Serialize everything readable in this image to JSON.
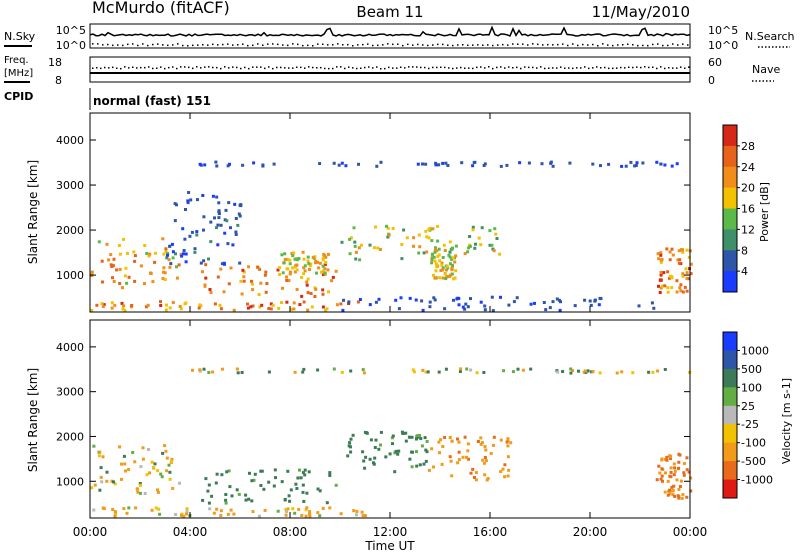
{
  "header": {
    "station": "McMurdo (fitACF)",
    "beam": "Beam 11",
    "date": "11/May/2010"
  },
  "noise_panel": {
    "left_label": "N.Sky",
    "left_ticks": [
      "10^5",
      "10^0"
    ],
    "right_ticks": [
      "10^5",
      "10^0"
    ],
    "right_label": "N.Search"
  },
  "freq_panel": {
    "left_label_1": "Freq.",
    "left_label_2": "[MHz]",
    "left_ticks": [
      "18",
      "8"
    ],
    "right_ticks": [
      "60",
      "0"
    ],
    "right_label": "Nave"
  },
  "cpid_panel": {
    "label": "CPID",
    "program": "normal (fast) 151"
  },
  "colors": {
    "power_scale": [
      "#1a3cff",
      "#2d55a8",
      "#3f8f6a",
      "#5bb94a",
      "#f2c200",
      "#f28c1a",
      "#e8631a",
      "#d62718"
    ],
    "velocity_scale": [
      "#1a3cff",
      "#2d55a8",
      "#3d7a58",
      "#62ae45",
      "#b9b9b9",
      "#f2c200",
      "#f29a1a",
      "#e86a1a",
      "#e01a12"
    ]
  },
  "chart_data": [
    {
      "type": "heatmap",
      "title": "Power",
      "xlabel": "Time UT",
      "ylabel": "Slant Range [km]",
      "x_ticks": [
        "00:00",
        "04:00",
        "08:00",
        "12:00",
        "16:00",
        "20:00",
        "00:00"
      ],
      "xlim": [
        0,
        24
      ],
      "y_ticks": [
        "1000",
        "2000",
        "3000",
        "4000"
      ],
      "ylim": [
        180,
        4600
      ],
      "colorbar_label": "Power [dB]",
      "colorbar_ticks": [
        "4",
        "8",
        "12",
        "16",
        "20",
        "24",
        "28"
      ],
      "colorbar_range": [
        0,
        32
      ],
      "echo_regions": [
        {
          "t0": 0.0,
          "t1": 3.6,
          "r0": 700,
          "r1": 1800,
          "v0": 14,
          "v1": 28
        },
        {
          "t0": 3.0,
          "t1": 6.0,
          "r0": 1200,
          "r1": 2900,
          "v0": 2,
          "v1": 9
        },
        {
          "t0": 4.4,
          "t1": 9.8,
          "r0": 500,
          "r1": 1250,
          "v0": 18,
          "v1": 30
        },
        {
          "t0": 7.5,
          "t1": 9.5,
          "r0": 1000,
          "r1": 1500,
          "v0": 12,
          "v1": 24
        },
        {
          "t0": 0.0,
          "t1": 11.0,
          "r0": 200,
          "r1": 400,
          "v0": 16,
          "v1": 30
        },
        {
          "t0": 10.0,
          "t1": 16.5,
          "r0": 1300,
          "r1": 2100,
          "v0": 10,
          "v1": 22
        },
        {
          "t0": 13.6,
          "t1": 14.6,
          "r0": 900,
          "r1": 1600,
          "v0": 12,
          "v1": 24
        },
        {
          "t0": 10.0,
          "t1": 22.5,
          "r0": 200,
          "r1": 500,
          "v0": 2,
          "v1": 8
        },
        {
          "t0": 22.6,
          "t1": 24.0,
          "r0": 600,
          "r1": 1600,
          "v0": 18,
          "v1": 30
        },
        {
          "t0": 4.0,
          "t1": 24.0,
          "r0": 3400,
          "r1": 3500,
          "v0": 2,
          "v1": 8
        }
      ]
    },
    {
      "type": "heatmap",
      "title": "Velocity",
      "xlabel": "Time UT",
      "ylabel": "Slant Range [km]",
      "x_ticks": [
        "00:00",
        "04:00",
        "08:00",
        "12:00",
        "16:00",
        "20:00",
        "00:00"
      ],
      "xlim": [
        0,
        24
      ],
      "y_ticks": [
        "1000",
        "2000",
        "3000",
        "4000"
      ],
      "ylim": [
        180,
        4600
      ],
      "colorbar_label": "Velocity [m s-1]",
      "colorbar_ticks": [
        "1000",
        "500",
        "100",
        "25",
        "-25",
        "-100",
        "-500",
        "-1000"
      ],
      "echo_regions": [
        {
          "t0": 0.0,
          "t1": 3.6,
          "r0": 700,
          "r1": 1800,
          "v0": -300,
          "v1": 200
        },
        {
          "t0": 4.4,
          "t1": 9.8,
          "r0": 500,
          "r1": 1250,
          "v0": 50,
          "v1": 400
        },
        {
          "t0": 0.0,
          "t1": 11.0,
          "r0": 200,
          "r1": 400,
          "v0": -400,
          "v1": 50
        },
        {
          "t0": 10.0,
          "t1": 13.5,
          "r0": 1200,
          "r1": 2100,
          "v0": 50,
          "v1": 500
        },
        {
          "t0": 13.5,
          "t1": 16.8,
          "r0": 1000,
          "r1": 2000,
          "v0": -600,
          "v1": -100
        },
        {
          "t0": 22.6,
          "t1": 24.0,
          "r0": 600,
          "r1": 1600,
          "v0": -900,
          "v1": -200
        },
        {
          "t0": 4.0,
          "t1": 24.0,
          "r0": 3400,
          "r1": 3500,
          "v0": -200,
          "v1": 300
        }
      ]
    }
  ]
}
